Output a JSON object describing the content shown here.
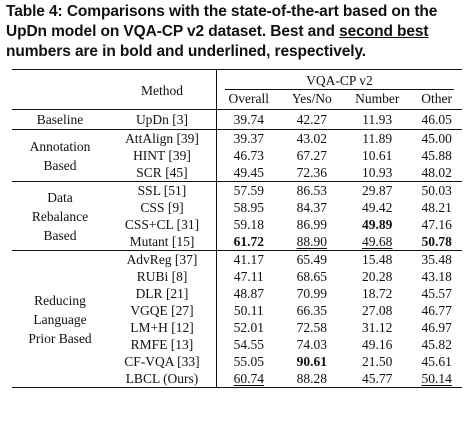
{
  "caption": {
    "part1": "Table 4: Comparisons with the state-of-the-art based on the UpDn model on VQA-CP v2 dataset. Best and ",
    "underlined": "second best",
    "part2": " numbers are in bold and underlined, respectively."
  },
  "header": {
    "method": "Method",
    "dataset": "VQA-CP v2",
    "columns": [
      "Overall",
      "Yes/No",
      "Number",
      "Other"
    ]
  },
  "groups": [
    {
      "name": "Baseline",
      "rows": [
        {
          "method": "UpDn [3]",
          "values": [
            "39.74",
            "42.27",
            "11.93",
            "46.05"
          ]
        }
      ]
    },
    {
      "name": "Annotation Based",
      "rows": [
        {
          "method": "AttAlign [39]",
          "values": [
            "39.37",
            "43.02",
            "11.89",
            "45.00"
          ]
        },
        {
          "method": "HINT [39]",
          "values": [
            "46.73",
            "67.27",
            "10.61",
            "45.88"
          ]
        },
        {
          "method": "SCR [45]",
          "values": [
            "49.45",
            "72.36",
            "10.93",
            "48.02"
          ]
        }
      ]
    },
    {
      "name": "Data Rebalance Based",
      "rows": [
        {
          "method": "SSL [51]",
          "values": [
            "57.59",
            "86.53",
            "29.87",
            "50.03"
          ]
        },
        {
          "method": "CSS [9]",
          "values": [
            "58.95",
            "84.37",
            "49.42",
            "48.21"
          ]
        },
        {
          "method": "CSS+CL [31]",
          "values": [
            "59.18",
            "86.99",
            "49.89",
            "47.16"
          ]
        },
        {
          "method": "Mutant [15]",
          "values": [
            "61.72",
            "88.90",
            "49.68",
            "50.78"
          ]
        }
      ]
    },
    {
      "name": "Reducing Language Prior Based",
      "rows": [
        {
          "method": "AdvReg [37]",
          "values": [
            "41.17",
            "65.49",
            "15.48",
            "35.48"
          ]
        },
        {
          "method": "RUBi [8]",
          "values": [
            "47.11",
            "68.65",
            "20.28",
            "43.18"
          ]
        },
        {
          "method": "DLR [21]",
          "values": [
            "48.87",
            "70.99",
            "18.72",
            "45.57"
          ]
        },
        {
          "method": "VGQE [27]",
          "values": [
            "50.11",
            "66.35",
            "27.08",
            "46.77"
          ]
        },
        {
          "method": "LM+H [12]",
          "values": [
            "52.01",
            "72.58",
            "31.12",
            "46.97"
          ]
        },
        {
          "method": "RMFE [13]",
          "values": [
            "54.55",
            "74.03",
            "49.16",
            "45.82"
          ]
        },
        {
          "method": "CF-VQA [33]",
          "values": [
            "55.05",
            "90.61",
            "21.50",
            "45.61"
          ]
        },
        {
          "method": "LBCL (Ours)",
          "values": [
            "60.74",
            "88.28",
            "45.77",
            "50.14"
          ]
        }
      ]
    }
  ]
}
